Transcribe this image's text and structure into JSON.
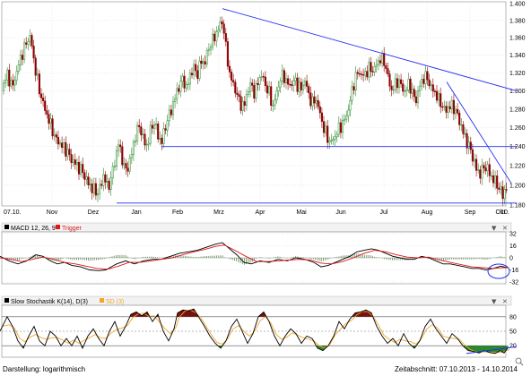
{
  "footer": {
    "left": "Darstellung: logarithmisch",
    "right": "Zeitabschnitt: 07.10.2013 - 14.10.2014"
  },
  "icons": [
    "dropdown-arrow-icon",
    "close-icon",
    "zoom-lens-icon"
  ],
  "colors": {
    "up_candle": "#2e8b2e",
    "down_candle": "#8b0000",
    "trendline": "#1f2ff0",
    "macd": "#000000",
    "trigger": "#e0161a",
    "histogram": "#4a7a3a",
    "stoch_k": "#000000",
    "stoch_sd": "#f5a623",
    "overbought_fill": "#7a1010",
    "oversold_fill": "#2a8a2a"
  },
  "chart_data": [
    {
      "type": "candlestick",
      "name": "price",
      "x_tick_labels": [
        "07.10.",
        "Nov",
        "Dez",
        "Jan",
        "Feb",
        "Mrz",
        "Apr",
        "Mai",
        "Jun",
        "Jul",
        "Aug",
        "Sep",
        "Okt",
        "10."
      ],
      "y_tick_labels": [
        "1.400",
        "1.380",
        "1.360",
        "1.340",
        "1.320",
        "1.300",
        "1.280",
        "1.260",
        "1.240",
        "1.220",
        "1.200",
        "1.180"
      ],
      "ylim": [
        1.18,
        1.4
      ],
      "scale": "log",
      "grid": true,
      "close_path": [
        [
          0,
          1.3
        ],
        [
          8,
          1.318
        ],
        [
          14,
          1.304
        ],
        [
          22,
          1.334
        ],
        [
          30,
          1.356
        ],
        [
          34,
          1.362
        ],
        [
          38,
          1.332
        ],
        [
          44,
          1.3
        ],
        [
          50,
          1.28
        ],
        [
          56,
          1.264
        ],
        [
          62,
          1.248
        ],
        [
          68,
          1.242
        ],
        [
          74,
          1.236
        ],
        [
          80,
          1.226
        ],
        [
          86,
          1.22
        ],
        [
          92,
          1.214
        ],
        [
          98,
          1.202
        ],
        [
          104,
          1.196
        ],
        [
          108,
          1.192
        ],
        [
          112,
          1.198
        ],
        [
          116,
          1.212
        ],
        [
          120,
          1.196
        ],
        [
          124,
          1.208
        ],
        [
          128,
          1.224
        ],
        [
          132,
          1.244
        ],
        [
          136,
          1.228
        ],
        [
          140,
          1.214
        ],
        [
          144,
          1.222
        ],
        [
          148,
          1.238
        ],
        [
          152,
          1.256
        ],
        [
          156,
          1.262
        ],
        [
          160,
          1.246
        ],
        [
          164,
          1.24
        ],
        [
          168,
          1.258
        ],
        [
          172,
          1.266
        ],
        [
          176,
          1.252
        ],
        [
          180,
          1.244
        ],
        [
          184,
          1.26
        ],
        [
          188,
          1.272
        ],
        [
          192,
          1.282
        ],
        [
          196,
          1.296
        ],
        [
          200,
          1.306
        ],
        [
          204,
          1.314
        ],
        [
          208,
          1.302
        ],
        [
          212,
          1.318
        ],
        [
          216,
          1.326
        ],
        [
          220,
          1.318
        ],
        [
          224,
          1.334
        ],
        [
          228,
          1.33
        ],
        [
          232,
          1.346
        ],
        [
          236,
          1.356
        ],
        [
          240,
          1.362
        ],
        [
          244,
          1.372
        ],
        [
          248,
          1.38
        ],
        [
          252,
          1.348
        ],
        [
          256,
          1.318
        ],
        [
          260,
          1.308
        ],
        [
          264,
          1.296
        ],
        [
          268,
          1.286
        ],
        [
          272,
          1.282
        ],
        [
          276,
          1.3
        ],
        [
          280,
          1.308
        ],
        [
          284,
          1.296
        ],
        [
          288,
          1.312
        ],
        [
          292,
          1.318
        ],
        [
          296,
          1.306
        ],
        [
          300,
          1.298
        ],
        [
          304,
          1.282
        ],
        [
          308,
          1.296
        ],
        [
          312,
          1.312
        ],
        [
          316,
          1.318
        ],
        [
          320,
          1.308
        ],
        [
          324,
          1.306
        ],
        [
          328,
          1.312
        ],
        [
          332,
          1.306
        ],
        [
          336,
          1.302
        ],
        [
          340,
          1.312
        ],
        [
          344,
          1.296
        ],
        [
          348,
          1.286
        ],
        [
          352,
          1.292
        ],
        [
          356,
          1.278
        ],
        [
          360,
          1.262
        ],
        [
          364,
          1.252
        ],
        [
          368,
          1.244
        ],
        [
          372,
          1.248
        ],
        [
          376,
          1.256
        ],
        [
          380,
          1.262
        ],
        [
          384,
          1.268
        ],
        [
          388,
          1.278
        ],
        [
          392,
          1.298
        ],
        [
          396,
          1.314
        ],
        [
          400,
          1.322
        ],
        [
          404,
          1.316
        ],
        [
          408,
          1.32
        ],
        [
          412,
          1.326
        ],
        [
          416,
          1.322
        ],
        [
          420,
          1.33
        ],
        [
          424,
          1.336
        ],
        [
          428,
          1.334
        ],
        [
          432,
          1.318
        ],
        [
          436,
          1.3
        ],
        [
          440,
          1.306
        ],
        [
          444,
          1.312
        ],
        [
          448,
          1.304
        ],
        [
          452,
          1.298
        ],
        [
          456,
          1.31
        ],
        [
          460,
          1.296
        ],
        [
          464,
          1.29
        ],
        [
          468,
          1.306
        ],
        [
          472,
          1.314
        ],
        [
          476,
          1.316
        ],
        [
          480,
          1.304
        ],
        [
          484,
          1.3
        ],
        [
          488,
          1.292
        ],
        [
          492,
          1.286
        ],
        [
          496,
          1.278
        ],
        [
          500,
          1.282
        ],
        [
          504,
          1.284
        ],
        [
          508,
          1.278
        ],
        [
          512,
          1.268
        ],
        [
          516,
          1.256
        ],
        [
          520,
          1.246
        ],
        [
          524,
          1.238
        ],
        [
          528,
          1.226
        ],
        [
          532,
          1.214
        ],
        [
          536,
          1.212
        ],
        [
          540,
          1.22
        ],
        [
          544,
          1.216
        ],
        [
          548,
          1.208
        ],
        [
          552,
          1.204
        ],
        [
          556,
          1.198
        ],
        [
          560,
          1.19
        ],
        [
          564,
          1.196
        ],
        [
          568,
          1.204
        ]
      ],
      "trendlines": [
        {
          "x1": 248,
          "y1": 1.394,
          "x2": 576,
          "y2": 1.3
        },
        {
          "x1": 498,
          "y1": 1.31,
          "x2": 570,
          "y2": 1.202
        },
        {
          "x1": 180,
          "y1": 1.24,
          "x2": 576,
          "y2": 1.24
        },
        {
          "x1": 130,
          "y1": 1.182,
          "x2": 576,
          "y2": 1.182
        }
      ]
    },
    {
      "type": "line",
      "name": "macd",
      "title": "MACD 12, 26, 9",
      "legend": [
        "MACD 12, 26, 9",
        "Trigger"
      ],
      "y_tick_labels": [
        "32",
        "16",
        "0",
        "-16",
        "-32"
      ],
      "ylim": [
        -32,
        32
      ],
      "grid": true,
      "macd_path": [
        [
          0,
          2
        ],
        [
          10,
          -4
        ],
        [
          20,
          -8
        ],
        [
          30,
          -4
        ],
        [
          40,
          4
        ],
        [
          48,
          2
        ],
        [
          56,
          -4
        ],
        [
          64,
          -8
        ],
        [
          72,
          -6
        ],
        [
          80,
          -10
        ],
        [
          90,
          -12
        ],
        [
          100,
          -16
        ],
        [
          110,
          -17
        ],
        [
          118,
          -16
        ],
        [
          124,
          -12
        ],
        [
          130,
          -8
        ],
        [
          140,
          -4
        ],
        [
          150,
          -8
        ],
        [
          160,
          -4
        ],
        [
          170,
          -2
        ],
        [
          180,
          -2
        ],
        [
          190,
          2
        ],
        [
          200,
          6
        ],
        [
          210,
          8
        ],
        [
          220,
          10
        ],
        [
          230,
          14
        ],
        [
          240,
          18
        ],
        [
          248,
          20
        ],
        [
          256,
          12
        ],
        [
          264,
          4
        ],
        [
          272,
          -6
        ],
        [
          280,
          -8
        ],
        [
          290,
          -4
        ],
        [
          300,
          -6
        ],
        [
          310,
          -2
        ],
        [
          320,
          -4
        ],
        [
          330,
          0
        ],
        [
          340,
          -2
        ],
        [
          350,
          -6
        ],
        [
          358,
          -12
        ],
        [
          366,
          -10
        ],
        [
          374,
          -6
        ],
        [
          382,
          -2
        ],
        [
          390,
          2
        ],
        [
          398,
          8
        ],
        [
          406,
          10
        ],
        [
          414,
          12
        ],
        [
          422,
          10
        ],
        [
          430,
          6
        ],
        [
          438,
          2
        ],
        [
          446,
          0
        ],
        [
          454,
          -2
        ],
        [
          462,
          -2
        ],
        [
          470,
          2
        ],
        [
          478,
          0
        ],
        [
          486,
          -4
        ],
        [
          494,
          -8
        ],
        [
          502,
          -8
        ],
        [
          510,
          -10
        ],
        [
          518,
          -12
        ],
        [
          526,
          -14
        ],
        [
          534,
          -14
        ],
        [
          542,
          -16
        ],
        [
          550,
          -14
        ],
        [
          558,
          -11
        ],
        [
          566,
          -13
        ]
      ],
      "trigger_path": [
        [
          0,
          0
        ],
        [
          12,
          -2
        ],
        [
          24,
          -5
        ],
        [
          36,
          -2
        ],
        [
          48,
          1
        ],
        [
          60,
          -2
        ],
        [
          72,
          -6
        ],
        [
          84,
          -8
        ],
        [
          96,
          -11
        ],
        [
          108,
          -14
        ],
        [
          120,
          -15
        ],
        [
          132,
          -11
        ],
        [
          144,
          -6
        ],
        [
          156,
          -6
        ],
        [
          168,
          -4
        ],
        [
          180,
          -2
        ],
        [
          192,
          0
        ],
        [
          204,
          4
        ],
        [
          216,
          8
        ],
        [
          228,
          11
        ],
        [
          240,
          15
        ],
        [
          250,
          17
        ],
        [
          262,
          10
        ],
        [
          274,
          2
        ],
        [
          286,
          -5
        ],
        [
          298,
          -5
        ],
        [
          310,
          -4
        ],
        [
          322,
          -3
        ],
        [
          334,
          -2
        ],
        [
          346,
          -3
        ],
        [
          358,
          -7
        ],
        [
          370,
          -8
        ],
        [
          382,
          -5
        ],
        [
          394,
          0
        ],
        [
          406,
          6
        ],
        [
          418,
          10
        ],
        [
          430,
          8
        ],
        [
          442,
          4
        ],
        [
          454,
          1
        ],
        [
          466,
          0
        ],
        [
          478,
          1
        ],
        [
          490,
          -3
        ],
        [
          502,
          -6
        ],
        [
          514,
          -9
        ],
        [
          526,
          -12
        ],
        [
          538,
          -13
        ],
        [
          550,
          -14
        ],
        [
          560,
          -13
        ],
        [
          566,
          -13
        ]
      ]
    },
    {
      "type": "line",
      "name": "stochastic",
      "title": "Slow Stochastik K(14), D(3)",
      "legend": [
        "Slow Stochastik K(14), D(3)",
        "SD (3)"
      ],
      "y_tick_labels": [
        "80",
        "50",
        "20"
      ],
      "ylim": [
        0,
        100
      ],
      "grid": true,
      "k_path": [
        [
          0,
          50
        ],
        [
          8,
          80
        ],
        [
          14,
          60
        ],
        [
          20,
          30
        ],
        [
          26,
          15
        ],
        [
          32,
          40
        ],
        [
          38,
          60
        ],
        [
          44,
          30
        ],
        [
          50,
          20
        ],
        [
          56,
          50
        ],
        [
          62,
          40
        ],
        [
          68,
          20
        ],
        [
          74,
          35
        ],
        [
          80,
          20
        ],
        [
          86,
          40
        ],
        [
          92,
          15
        ],
        [
          98,
          40
        ],
        [
          104,
          55
        ],
        [
          110,
          35
        ],
        [
          116,
          20
        ],
        [
          122,
          50
        ],
        [
          128,
          70
        ],
        [
          134,
          40
        ],
        [
          140,
          60
        ],
        [
          146,
          85
        ],
        [
          152,
          90
        ],
        [
          158,
          82
        ],
        [
          164,
          90
        ],
        [
          170,
          70
        ],
        [
          176,
          85
        ],
        [
          182,
          50
        ],
        [
          188,
          30
        ],
        [
          194,
          55
        ],
        [
          198,
          88
        ],
        [
          204,
          94
        ],
        [
          210,
          92
        ],
        [
          216,
          96
        ],
        [
          222,
          78
        ],
        [
          228,
          60
        ],
        [
          234,
          40
        ],
        [
          240,
          25
        ],
        [
          246,
          15
        ],
        [
          252,
          30
        ],
        [
          258,
          60
        ],
        [
          264,
          75
        ],
        [
          270,
          50
        ],
        [
          276,
          25
        ],
        [
          282,
          45
        ],
        [
          288,
          80
        ],
        [
          294,
          90
        ],
        [
          300,
          70
        ],
        [
          306,
          40
        ],
        [
          312,
          20
        ],
        [
          318,
          40
        ],
        [
          324,
          55
        ],
        [
          330,
          45
        ],
        [
          336,
          25
        ],
        [
          342,
          40
        ],
        [
          348,
          35
        ],
        [
          354,
          15
        ],
        [
          360,
          10
        ],
        [
          366,
          20
        ],
        [
          372,
          40
        ],
        [
          378,
          70
        ],
        [
          384,
          55
        ],
        [
          390,
          75
        ],
        [
          396,
          88
        ],
        [
          402,
          90
        ],
        [
          408,
          94
        ],
        [
          414,
          88
        ],
        [
          420,
          60
        ],
        [
          426,
          40
        ],
        [
          432,
          25
        ],
        [
          438,
          35
        ],
        [
          444,
          20
        ],
        [
          450,
          45
        ],
        [
          456,
          25
        ],
        [
          462,
          15
        ],
        [
          468,
          30
        ],
        [
          474,
          60
        ],
        [
          480,
          75
        ],
        [
          486,
          55
        ],
        [
          492,
          40
        ],
        [
          498,
          25
        ],
        [
          504,
          45
        ],
        [
          510,
          35
        ],
        [
          516,
          20
        ],
        [
          522,
          10
        ],
        [
          528,
          8
        ],
        [
          534,
          5
        ],
        [
          540,
          10
        ],
        [
          546,
          6
        ],
        [
          552,
          4
        ],
        [
          558,
          10
        ],
        [
          562,
          5
        ],
        [
          566,
          15
        ]
      ],
      "trendline": {
        "x1": 520,
        "y1": 4,
        "x2": 576,
        "y2": 18
      },
      "overbought": 80,
      "oversold": 20
    }
  ]
}
